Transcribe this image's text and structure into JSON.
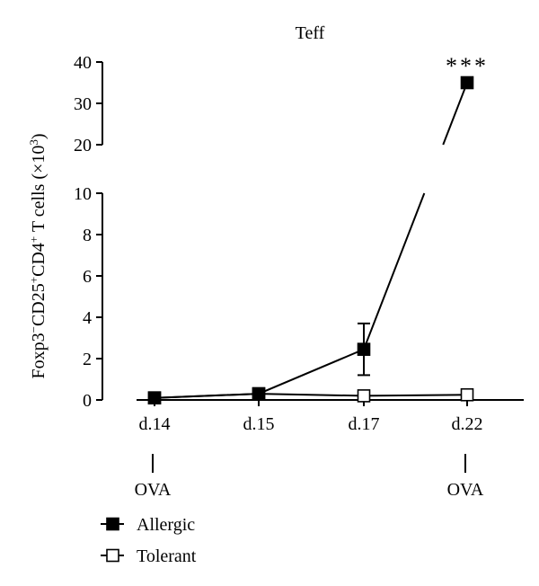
{
  "chart_data": {
    "type": "line",
    "title": "Teff",
    "ylabel_parts": {
      "p1": "Foxp3",
      "p1_sup": "−",
      "p2": "CD25",
      "p2_sup": "+",
      "p3": "CD4",
      "p3_sup": "+",
      "p4": " T cells (×10",
      "p4_sup": "3",
      "p5": ")"
    },
    "categories": [
      "d.14",
      "d.15",
      "d.17",
      "d.22"
    ],
    "axis_break": true,
    "y_lower": {
      "range": [
        0,
        10
      ],
      "ticks": [
        "0",
        "2",
        "4",
        "6",
        "8",
        "10"
      ]
    },
    "y_upper": {
      "range": [
        20,
        40
      ],
      "ticks": [
        "20",
        "30",
        "40"
      ]
    },
    "series": [
      {
        "name": "Allergic",
        "marker": "filled-square",
        "values": [
          0.1,
          0.3,
          2.45,
          35
        ],
        "error": [
          0.05,
          0.1,
          1.25,
          0
        ]
      },
      {
        "name": "Tolerant",
        "marker": "open-square",
        "values": [
          0.1,
          0.3,
          0.2,
          0.25
        ],
        "error": [
          0,
          0,
          0,
          0
        ]
      }
    ],
    "annotations": [
      {
        "text": "***",
        "category": "d.22"
      }
    ],
    "ova_markers": [
      {
        "category": "d.14",
        "label": "OVA"
      },
      {
        "category": "d.22",
        "label": "OVA"
      }
    ],
    "legend_position": "bottom-left",
    "grid": false
  }
}
